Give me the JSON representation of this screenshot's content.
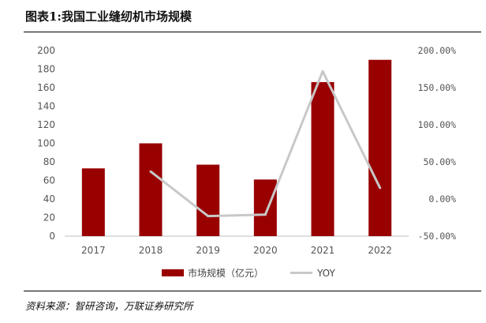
{
  "figure": {
    "title": "图表1:我国工业缝纫机市场规模",
    "source": "资料来源：智研咨询，万联证券研究所"
  },
  "chart_data": {
    "type": "bar",
    "categories": [
      "2017",
      "2018",
      "2019",
      "2020",
      "2021",
      "2022"
    ],
    "series": [
      {
        "name": "市场规模（亿元）",
        "type": "bar",
        "axis": "left",
        "color": "#990000",
        "values": [
          73,
          100,
          77,
          61,
          166,
          190
        ]
      },
      {
        "name": "YOY",
        "type": "line",
        "axis": "right",
        "color": "#c8c8c8",
        "values": [
          null,
          0.37,
          -0.23,
          -0.21,
          1.72,
          0.15
        ]
      }
    ],
    "left_axis": {
      "min": 0,
      "max": 200,
      "step": 20,
      "tick_labels": [
        "0",
        "20",
        "40",
        "60",
        "80",
        "100",
        "120",
        "140",
        "160",
        "180",
        "200"
      ]
    },
    "right_axis": {
      "min": -0.5,
      "max": 2.0,
      "step": 0.5,
      "tick_labels": [
        "-50.00%",
        "0.00%",
        "50.00%",
        "100.00%",
        "150.00%",
        "200.00%"
      ]
    },
    "grid": false,
    "legend": "bottom"
  }
}
